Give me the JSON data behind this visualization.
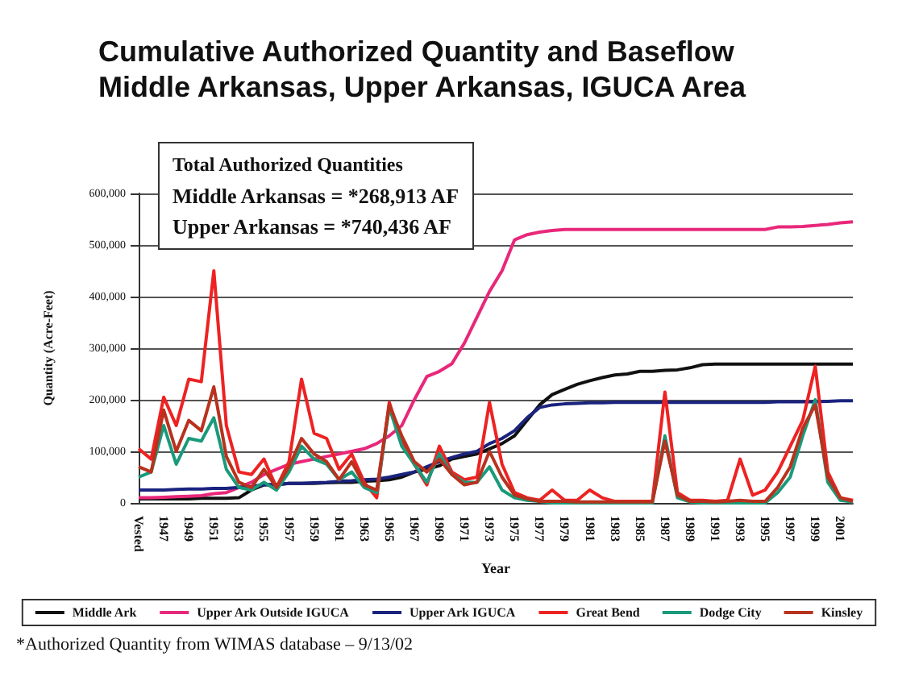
{
  "chart_data": {
    "type": "line",
    "title": "Cumulative Authorized Quantity and Baseflow\nMiddle Arkansas, Upper Arkansas, IGUCA Area",
    "xlabel": "Year",
    "ylabel": "Quantity (Acre-Feet)",
    "categories": [
      "Vested",
      null,
      "1947",
      null,
      "1949",
      null,
      "1951",
      null,
      "1953",
      null,
      "1955",
      null,
      "1957",
      null,
      "1959",
      null,
      "1961",
      null,
      "1963",
      null,
      "1965",
      null,
      "1967",
      null,
      "1969",
      null,
      "1971",
      null,
      "1973",
      null,
      "1975",
      null,
      "1977",
      null,
      "1979",
      null,
      "1981",
      null,
      "1983",
      null,
      "1985",
      null,
      "1987",
      null,
      "1989",
      null,
      "1991",
      null,
      "1993",
      null,
      "1995",
      null,
      "1997",
      null,
      "1999",
      null,
      "2001",
      null
    ],
    "series": [
      {
        "name": "Middle Ark",
        "color": "#111111",
        "values": [
          8000,
          8000,
          8000,
          8000,
          8000,
          9000,
          9000,
          9000,
          10000,
          25000,
          35000,
          35000,
          38000,
          38000,
          38000,
          39000,
          40000,
          40000,
          42000,
          43000,
          45000,
          50000,
          60000,
          65000,
          72000,
          85000,
          90000,
          95000,
          105000,
          115000,
          130000,
          160000,
          190000,
          210000,
          220000,
          230000,
          237000,
          243000,
          248000,
          250000,
          255000,
          255000,
          257000,
          258000,
          262000,
          268000,
          269000,
          269000,
          269000,
          269000,
          269000,
          269000,
          269000,
          269000,
          269000,
          269000,
          269000,
          269000
        ]
      },
      {
        "name": "Upper Ark Outside IGUCA",
        "color": "#e8287a",
        "values": [
          10000,
          10000,
          11000,
          12000,
          13000,
          14000,
          18000,
          20000,
          30000,
          40000,
          55000,
          65000,
          75000,
          80000,
          85000,
          90000,
          95000,
          100000,
          105000,
          115000,
          130000,
          150000,
          200000,
          245000,
          255000,
          270000,
          310000,
          360000,
          410000,
          450000,
          510000,
          520000,
          525000,
          528000,
          530000,
          530000,
          530000,
          530000,
          530000,
          530000,
          530000,
          530000,
          530000,
          530000,
          530000,
          530000,
          530000,
          530000,
          530000,
          530000,
          530000,
          535000,
          535000,
          536000,
          538000,
          540000,
          543000,
          545000
        ]
      },
      {
        "name": "Upper Ark IGUCA",
        "color": "#1a237e",
        "values": [
          25000,
          25000,
          25000,
          26000,
          27000,
          27000,
          28000,
          28000,
          30000,
          32000,
          35000,
          36000,
          38000,
          38000,
          39000,
          40000,
          42000,
          43000,
          45000,
          46000,
          50000,
          55000,
          60000,
          70000,
          80000,
          88000,
          95000,
          100000,
          115000,
          125000,
          140000,
          165000,
          185000,
          190000,
          192000,
          193000,
          194000,
          194000,
          195000,
          195000,
          195000,
          195000,
          195000,
          195000,
          195000,
          195000,
          195000,
          195000,
          195000,
          195000,
          195000,
          196000,
          196000,
          196000,
          196000,
          197000,
          198000,
          198000
        ]
      },
      {
        "name": "Great Bend",
        "color": "#ee2222",
        "values": [
          105000,
          85000,
          205000,
          150000,
          240000,
          235000,
          450000,
          150000,
          60000,
          55000,
          85000,
          30000,
          80000,
          240000,
          135000,
          125000,
          65000,
          95000,
          40000,
          10000,
          195000,
          120000,
          75000,
          35000,
          110000,
          60000,
          45000,
          50000,
          195000,
          75000,
          20000,
          10000,
          5000,
          25000,
          5000,
          5000,
          25000,
          10000,
          3000,
          3000,
          3000,
          3000,
          215000,
          20000,
          5000,
          5000,
          3000,
          5000,
          85000,
          15000,
          25000,
          60000,
          110000,
          160000,
          265000,
          60000,
          10000,
          5000
        ]
      },
      {
        "name": "Dodge City",
        "color": "#1a9a7a",
        "values": [
          50000,
          60000,
          150000,
          75000,
          125000,
          120000,
          165000,
          65000,
          30000,
          25000,
          40000,
          25000,
          60000,
          110000,
          85000,
          75000,
          45000,
          60000,
          30000,
          20000,
          185000,
          110000,
          75000,
          40000,
          95000,
          55000,
          40000,
          40000,
          70000,
          25000,
          10000,
          5000,
          3000,
          0,
          0,
          0,
          0,
          0,
          0,
          0,
          0,
          0,
          130000,
          10000,
          2000,
          0,
          0,
          0,
          0,
          0,
          0,
          20000,
          50000,
          130000,
          200000,
          40000,
          5000,
          2000
        ]
      },
      {
        "name": "Kinsley",
        "color": "#b8321e",
        "values": [
          70000,
          60000,
          180000,
          100000,
          160000,
          140000,
          225000,
          90000,
          40000,
          30000,
          65000,
          30000,
          70000,
          125000,
          95000,
          80000,
          45000,
          80000,
          35000,
          25000,
          190000,
          130000,
          80000,
          60000,
          85000,
          55000,
          35000,
          40000,
          100000,
          50000,
          15000,
          8000,
          3000,
          3000,
          3000,
          2000,
          2000,
          2000,
          2000,
          2000,
          2000,
          2000,
          120000,
          15000,
          3000,
          3000,
          2000,
          3000,
          5000,
          3000,
          3000,
          30000,
          70000,
          145000,
          190000,
          50000,
          10000,
          3000
        ]
      }
    ],
    "ylim": [
      0,
      600000
    ],
    "yticks": [
      0,
      {
        "value": 100000,
        "label": "100,000"
      },
      {
        "value": 200000,
        "label": "200,000"
      },
      {
        "value": 300000,
        "label": "300,000"
      },
      {
        "value": 400000,
        "label": "400,000"
      },
      {
        "value": 500000,
        "label": "500,000"
      },
      {
        "value": 600000,
        "label": "600,000"
      }
    ],
    "grid": "y",
    "legend": "bottom",
    "marker": "none",
    "line_style": "solid",
    "annotations": [
      "Total Authorized Quantities",
      "Middle Arkansas = *268,913 AF",
      "Upper Arkansas = *740,436 AF",
      "*Authorized Quantity from WIMAS database – 9/13/02"
    ]
  }
}
